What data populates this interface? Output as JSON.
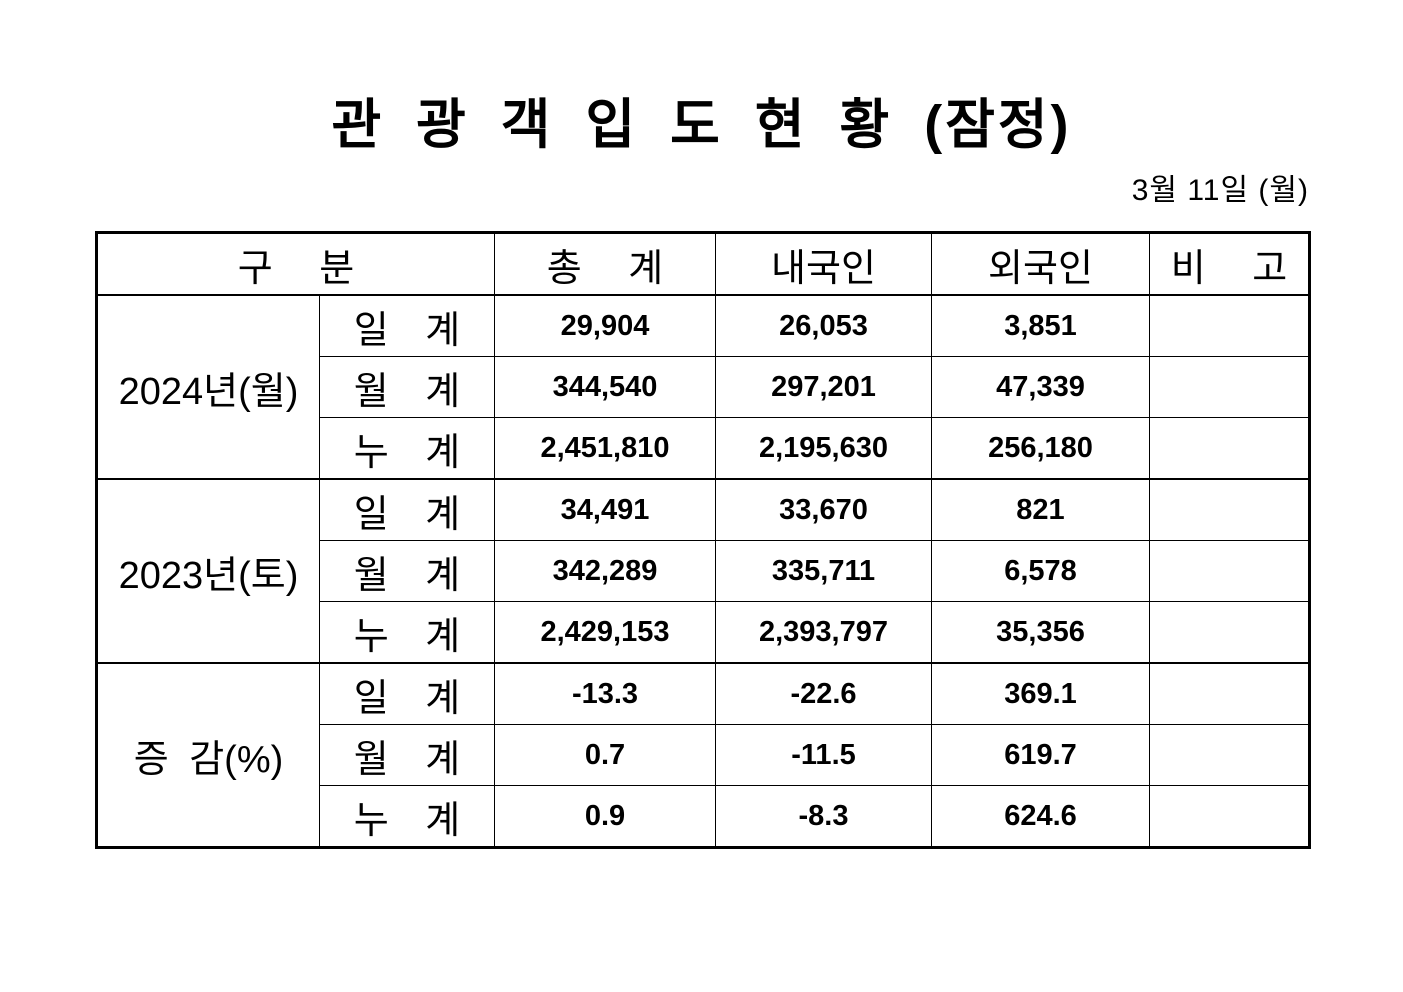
{
  "page": {
    "title": "관 광 객 입 도 현 황 (잠정)",
    "date": "3월 11일 (월)"
  },
  "table": {
    "headers": {
      "category": "구 분",
      "total": "총 계",
      "domestic": "내국인",
      "foreign": "외국인",
      "note": "비 고"
    },
    "groups": [
      {
        "label": "2024년(월)",
        "rows": [
          {
            "label": "일 계",
            "total": "29,904",
            "domestic": "26,053",
            "foreign": "3,851",
            "note": ""
          },
          {
            "label": "월 계",
            "total": "344,540",
            "domestic": "297,201",
            "foreign": "47,339",
            "note": ""
          },
          {
            "label": "누 계",
            "total": "2,451,810",
            "domestic": "2,195,630",
            "foreign": "256,180",
            "note": ""
          }
        ]
      },
      {
        "label": "2023년(토)",
        "rows": [
          {
            "label": "일 계",
            "total": "34,491",
            "domestic": "33,670",
            "foreign": "821",
            "note": ""
          },
          {
            "label": "월 계",
            "total": "342,289",
            "domestic": "335,711",
            "foreign": "6,578",
            "note": ""
          },
          {
            "label": "누 계",
            "total": "2,429,153",
            "domestic": "2,393,797",
            "foreign": "35,356",
            "note": ""
          }
        ]
      },
      {
        "label": "증 감(%)",
        "rows": [
          {
            "label": "일 계",
            "total": "-13.3",
            "domestic": "-22.6",
            "foreign": "369.1",
            "note": ""
          },
          {
            "label": "월 계",
            "total": "0.7",
            "domestic": "-11.5",
            "foreign": "619.7",
            "note": ""
          },
          {
            "label": "누 계",
            "total": "0.9",
            "domestic": "-8.3",
            "foreign": "624.6",
            "note": ""
          }
        ]
      }
    ]
  },
  "colors": {
    "text": "#000000",
    "background": "#ffffff",
    "border": "#000000"
  }
}
